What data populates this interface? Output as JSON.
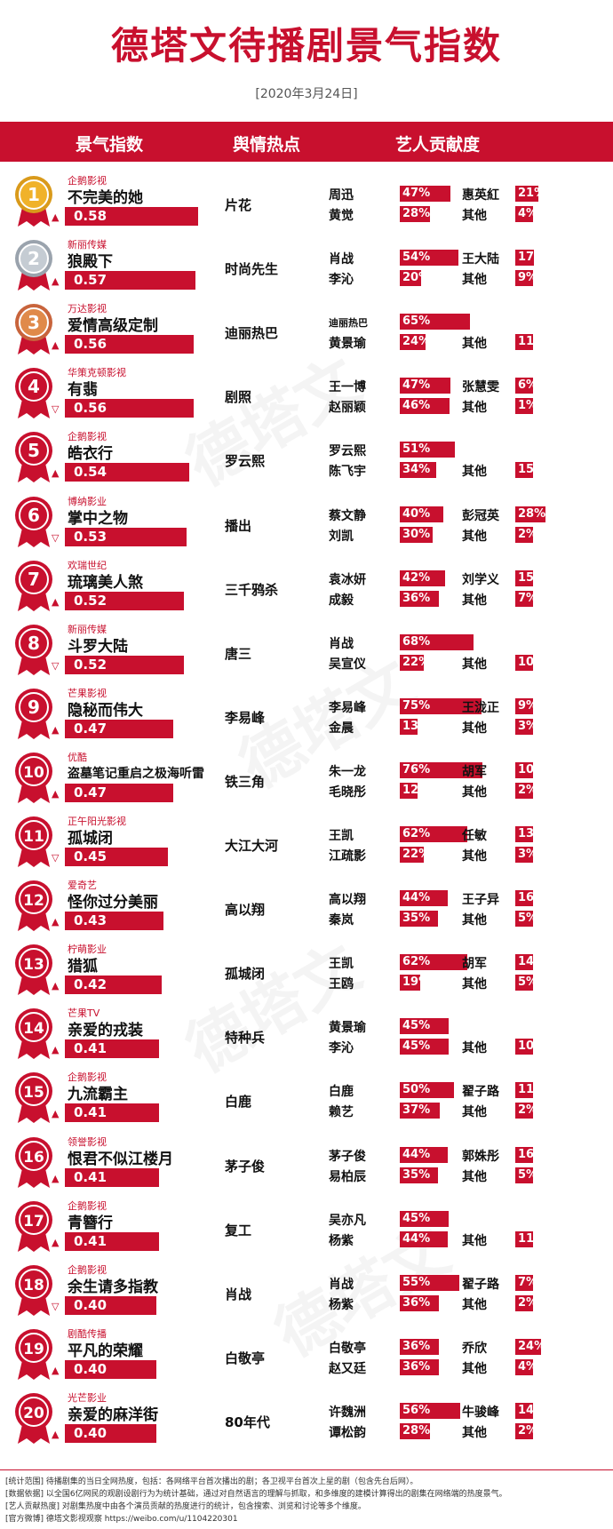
{
  "title": "德塔文待播剧景气指数",
  "date": "[2020年3月24日]",
  "header": {
    "col1": "景气指数",
    "col2": "舆情热点",
    "col3": "艺人贡献度"
  },
  "watermark": "德塔文",
  "chart_data": {
    "type": "bar",
    "ranks": [
      "1",
      "2",
      "3",
      "4",
      "5",
      "6",
      "7",
      "8",
      "9",
      "10",
      "11",
      "12",
      "13",
      "14",
      "15",
      "16",
      "17",
      "18",
      "19",
      "20"
    ],
    "rows": [
      {
        "company": "企鹅影视",
        "show": "不完美的她",
        "trend": "▲",
        "score": "0.58",
        "hot": "片花",
        "a1": {
          "name": "周迅",
          "pct": "47%"
        },
        "a2": {
          "name": "黄觉",
          "pct": "28%"
        },
        "a3": {
          "name": "惠英紅",
          "pct": "21%"
        },
        "a4": {
          "name": "其他",
          "pct": "4%"
        }
      },
      {
        "company": "新丽传媒",
        "show": "狼殿下",
        "trend": "▲",
        "score": "0.57",
        "hot": "时尚先生",
        "a1": {
          "name": "肖战",
          "pct": "54%"
        },
        "a2": {
          "name": "李沁",
          "pct": "20%"
        },
        "a3": {
          "name": "王大陆",
          "pct": "17%"
        },
        "a4": {
          "name": "其他",
          "pct": "9%"
        }
      },
      {
        "company": "万达影视",
        "show": "爱情高级定制",
        "trend": "▲",
        "score": "0.56",
        "hot": "迪丽热巴",
        "a1": {
          "name": "迪丽热巴",
          "pct": "65%"
        },
        "a2": {
          "name": "黄景瑜",
          "pct": "24%"
        },
        "a3": {
          "name": "",
          "pct": ""
        },
        "a4": {
          "name": "其他",
          "pct": "11%"
        }
      },
      {
        "company": "华策克顿影视",
        "show": "有翡",
        "trend": "▽",
        "score": "0.56",
        "hot": "剧照",
        "a1": {
          "name": "王一博",
          "pct": "47%"
        },
        "a2": {
          "name": "赵丽颖",
          "pct": "46%"
        },
        "a3": {
          "name": "张慧雯",
          "pct": "6%"
        },
        "a4": {
          "name": "其他",
          "pct": "1%"
        }
      },
      {
        "company": "企鹅影视",
        "show": "皓衣行",
        "trend": "▲",
        "score": "0.54",
        "hot": "罗云熙",
        "a1": {
          "name": "罗云熙",
          "pct": "51%"
        },
        "a2": {
          "name": "陈飞宇",
          "pct": "34%"
        },
        "a3": {
          "name": "",
          "pct": ""
        },
        "a4": {
          "name": "其他",
          "pct": "15%"
        }
      },
      {
        "company": "博纳影业",
        "show": "掌中之物",
        "trend": "▽",
        "score": "0.53",
        "hot": "播出",
        "a1": {
          "name": "蔡文静",
          "pct": "40%"
        },
        "a2": {
          "name": "刘凯",
          "pct": "30%"
        },
        "a3": {
          "name": "彭冠英",
          "pct": "28%"
        },
        "a4": {
          "name": "其他",
          "pct": "2%"
        }
      },
      {
        "company": "欢瑞世纪",
        "show": "琉璃美人煞",
        "trend": "▲",
        "score": "0.52",
        "hot": "三千鸦杀",
        "a1": {
          "name": "袁冰妍",
          "pct": "42%"
        },
        "a2": {
          "name": "成毅",
          "pct": "36%"
        },
        "a3": {
          "name": "刘学义",
          "pct": "15%"
        },
        "a4": {
          "name": "其他",
          "pct": "7%"
        }
      },
      {
        "company": "新丽传媒",
        "show": "斗罗大陆",
        "trend": "▽",
        "score": "0.52",
        "hot": "唐三",
        "a1": {
          "name": "肖战",
          "pct": "68%"
        },
        "a2": {
          "name": "吴宣仪",
          "pct": "22%"
        },
        "a3": {
          "name": "",
          "pct": ""
        },
        "a4": {
          "name": "其他",
          "pct": "10%"
        }
      },
      {
        "company": "芒果影视",
        "show": "隐秘而伟大",
        "trend": "▲",
        "score": "0.47",
        "hot": "李易峰",
        "a1": {
          "name": "李易峰",
          "pct": "75%"
        },
        "a2": {
          "name": "金晨",
          "pct": "13%"
        },
        "a3": {
          "name": "王泷正",
          "pct": "9%"
        },
        "a4": {
          "name": "其他",
          "pct": "3%"
        }
      },
      {
        "company": "优酷",
        "show": "盗墓笔记重启之极海听雷",
        "trend": "▲",
        "score": "0.47",
        "hot": "铁三角",
        "a1": {
          "name": "朱一龙",
          "pct": "76%"
        },
        "a2": {
          "name": "毛晓彤",
          "pct": "12%"
        },
        "a3": {
          "name": "胡军",
          "pct": "10%"
        },
        "a4": {
          "name": "其他",
          "pct": "2%"
        }
      },
      {
        "company": "正午阳光影视",
        "show": "孤城闭",
        "trend": "▽",
        "score": "0.45",
        "hot": "大江大河",
        "a1": {
          "name": "王凯",
          "pct": "62%"
        },
        "a2": {
          "name": "江疏影",
          "pct": "22%"
        },
        "a3": {
          "name": "任敏",
          "pct": "13%"
        },
        "a4": {
          "name": "其他",
          "pct": "3%"
        }
      },
      {
        "company": "爱奇艺",
        "show": "怪你过分美丽",
        "trend": "▲",
        "score": "0.43",
        "hot": "高以翔",
        "a1": {
          "name": "高以翔",
          "pct": "44%"
        },
        "a2": {
          "name": "秦岚",
          "pct": "35%"
        },
        "a3": {
          "name": "王子异",
          "pct": "16%"
        },
        "a4": {
          "name": "其他",
          "pct": "5%"
        }
      },
      {
        "company": "柠萌影业",
        "show": "猎狐",
        "trend": "▲",
        "score": "0.42",
        "hot": "孤城闭",
        "a1": {
          "name": "王凯",
          "pct": "62%"
        },
        "a2": {
          "name": "王鸥",
          "pct": "19%"
        },
        "a3": {
          "name": "胡军",
          "pct": "14%"
        },
        "a4": {
          "name": "其他",
          "pct": "5%"
        }
      },
      {
        "company": "芒果TV",
        "show": "亲爱的戎装",
        "trend": "▲",
        "score": "0.41",
        "hot": "特种兵",
        "a1": {
          "name": "黄景瑜",
          "pct": "45%"
        },
        "a2": {
          "name": "李沁",
          "pct": "45%"
        },
        "a3": {
          "name": "",
          "pct": ""
        },
        "a4": {
          "name": "其他",
          "pct": "10%"
        }
      },
      {
        "company": "企鹅影视",
        "show": "九流霸主",
        "trend": "▲",
        "score": "0.41",
        "hot": "白鹿",
        "a1": {
          "name": "白鹿",
          "pct": "50%"
        },
        "a2": {
          "name": "赖艺",
          "pct": "37%"
        },
        "a3": {
          "name": "翟子路",
          "pct": "11%"
        },
        "a4": {
          "name": "其他",
          "pct": "2%"
        }
      },
      {
        "company": "领誉影视",
        "show": "恨君不似江楼月",
        "trend": "▲",
        "score": "0.41",
        "hot": "茅子俊",
        "a1": {
          "name": "茅子俊",
          "pct": "44%"
        },
        "a2": {
          "name": "易柏辰",
          "pct": "35%"
        },
        "a3": {
          "name": "郭姝彤",
          "pct": "16%"
        },
        "a4": {
          "name": "其他",
          "pct": "5%"
        }
      },
      {
        "company": "企鹅影视",
        "show": "青簪行",
        "trend": "▲",
        "score": "0.41",
        "hot": "复工",
        "a1": {
          "name": "吴亦凡",
          "pct": "45%"
        },
        "a2": {
          "name": "杨紫",
          "pct": "44%"
        },
        "a3": {
          "name": "",
          "pct": ""
        },
        "a4": {
          "name": "其他",
          "pct": "11%"
        }
      },
      {
        "company": "企鹅影视",
        "show": "余生请多指教",
        "trend": "▽",
        "score": "0.40",
        "hot": "肖战",
        "a1": {
          "name": "肖战",
          "pct": "55%"
        },
        "a2": {
          "name": "杨紫",
          "pct": "36%"
        },
        "a3": {
          "name": "翟子路",
          "pct": "7%"
        },
        "a4": {
          "name": "其他",
          "pct": "2%"
        }
      },
      {
        "company": "剧酷传播",
        "show": "平凡的荣耀",
        "trend": "▲",
        "score": "0.40",
        "hot": "白敬亭",
        "a1": {
          "name": "白敬亭",
          "pct": "36%"
        },
        "a2": {
          "name": "赵又廷",
          "pct": "36%"
        },
        "a3": {
          "name": "乔欣",
          "pct": "24%"
        },
        "a4": {
          "name": "其他",
          "pct": "4%"
        }
      },
      {
        "company": "光芒影业",
        "show": "亲爱的麻洋街",
        "trend": "▲",
        "score": "0.40",
        "hot": "80年代",
        "a1": {
          "name": "许魏洲",
          "pct": "56%"
        },
        "a2": {
          "name": "谭松韵",
          "pct": "28%"
        },
        "a3": {
          "name": "牛骏峰",
          "pct": "14%"
        },
        "a4": {
          "name": "其他",
          "pct": "2%"
        }
      }
    ]
  },
  "footer": [
    "[统计范围] 待播剧集的当日全网热度，包括：各网络平台首次播出的剧；各卫视平台首次上星的剧（包含先台后网）。",
    "[数据依据] 以全国6亿网民的观剧设剧行为为统计基础，通过对自然语言的理解与抓取，和多维度的建模计算得出的剧集在网络端的热度景气。",
    "[艺人贡献热度] 对剧集热度中由各个演员贡献的热度进行的统计，包含搜索、浏览和讨论等多个维度。",
    "[官方微博] 德塔文影视观察 https://weibo.com/u/1104220301"
  ],
  "colors": {
    "accent": "#c8102e",
    "gold": "#d99a1b",
    "silver": "#9aa3ad",
    "bronze": "#c8643c"
  }
}
